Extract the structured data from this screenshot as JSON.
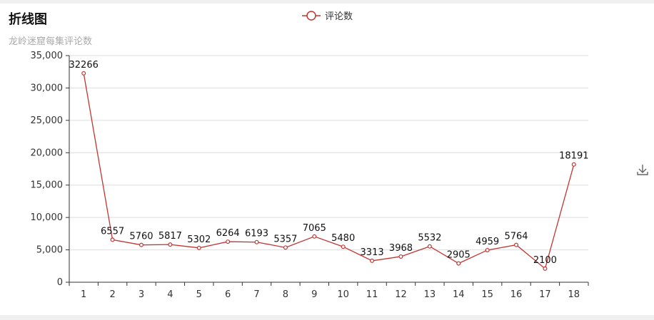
{
  "chart_data": {
    "type": "line",
    "title": "折线图",
    "subtitle": "龙岭迷窟每集评论数",
    "categories": [
      "1",
      "2",
      "3",
      "4",
      "5",
      "6",
      "7",
      "8",
      "9",
      "10",
      "11",
      "12",
      "13",
      "14",
      "15",
      "16",
      "17",
      "18"
    ],
    "series": [
      {
        "name": "评论数",
        "color": "#c23531",
        "values": [
          32266,
          6557,
          5760,
          5817,
          5302,
          6264,
          6193,
          5357,
          7065,
          5480,
          3313,
          3968,
          5532,
          2905,
          4959,
          5764,
          2100,
          18191
        ]
      }
    ],
    "ylim": [
      0,
      35000
    ],
    "yticks": [
      "0",
      "5,000",
      "10,000",
      "15,000",
      "20,000",
      "25,000",
      "30,000",
      "35,000"
    ],
    "ytick_values": [
      0,
      5000,
      10000,
      15000,
      20000,
      25000,
      30000,
      35000
    ],
    "grid": true,
    "legend_position": "top-center"
  },
  "toolbox": {
    "icon": "download-icon"
  }
}
